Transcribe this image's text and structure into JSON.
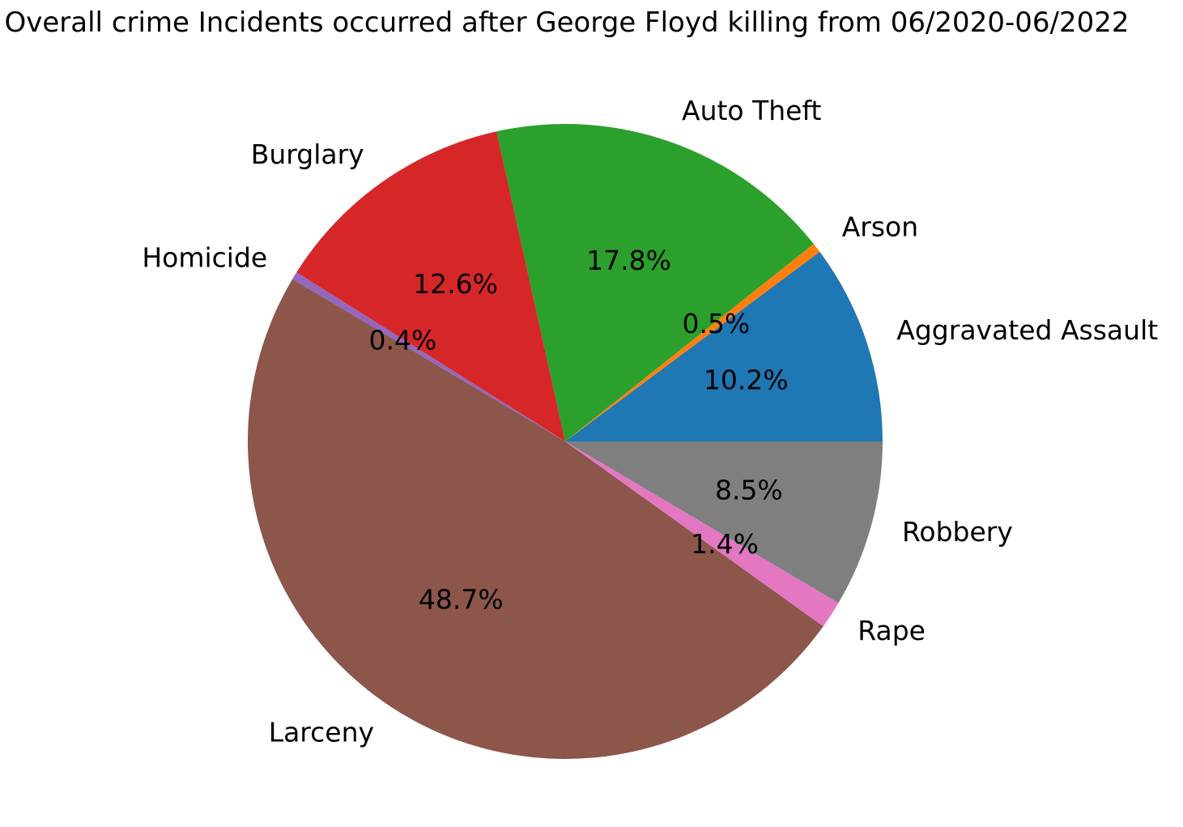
{
  "chart_data": {
    "type": "pie",
    "title": "Overall crime Incidents occurred after George Floyd killing from 06/2020-06/2022",
    "start_angle_deg": 0,
    "direction": "counterclockwise",
    "slices": [
      {
        "label": "Aggravated Assault",
        "percent": 10.2,
        "percent_label": "10.2%",
        "color": "#1f77b4"
      },
      {
        "label": "Arson",
        "percent": 0.5,
        "percent_label": "0.5%",
        "color": "#ff7f0e"
      },
      {
        "label": "Auto Theft",
        "percent": 17.8,
        "percent_label": "17.8%",
        "color": "#2ca02c"
      },
      {
        "label": "Burglary",
        "percent": 12.6,
        "percent_label": "12.6%",
        "color": "#d62728"
      },
      {
        "label": "Homicide",
        "percent": 0.4,
        "percent_label": "0.4%",
        "color": "#9467bd"
      },
      {
        "label": "Larceny",
        "percent": 48.7,
        "percent_label": "48.7%",
        "color": "#8c564b"
      },
      {
        "label": "Rape",
        "percent": 1.4,
        "percent_label": "1.4%",
        "color": "#e377c2"
      },
      {
        "label": "Robbery",
        "percent": 8.5,
        "percent_label": "8.5%",
        "color": "#7f7f7f"
      }
    ]
  }
}
